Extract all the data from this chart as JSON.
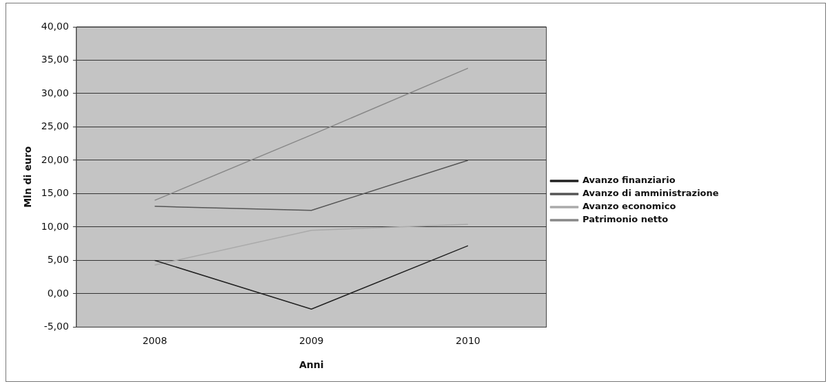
{
  "chart_data": {
    "type": "line",
    "xlabel": "Anni",
    "ylabel": "Mln di euro",
    "categories": [
      "2008",
      "2009",
      "2010"
    ],
    "series": [
      {
        "name": "Avanzo finanziario",
        "color": "#222222",
        "values": [
          5.0,
          -2.3,
          7.2
        ]
      },
      {
        "name": "Avanzo di amministrazione",
        "color": "#555555",
        "values": [
          13.1,
          12.5,
          20.0
        ]
      },
      {
        "name": "Avanzo economico",
        "color": "#aaaaaa",
        "values": [
          4.3,
          9.5,
          10.4
        ]
      },
      {
        "name": "Patrimonio netto",
        "color": "#888888",
        "values": [
          14.0,
          23.8,
          33.8
        ]
      }
    ],
    "ylim": [
      -5,
      40
    ],
    "yticks": [
      {
        "value": -5,
        "label": "-5,00"
      },
      {
        "value": 0,
        "label": "0,00"
      },
      {
        "value": 5,
        "label": "5,00"
      },
      {
        "value": 10,
        "label": "10,00"
      },
      {
        "value": 15,
        "label": "15,00"
      },
      {
        "value": 20,
        "label": "20,00"
      },
      {
        "value": 25,
        "label": "25,00"
      },
      {
        "value": 30,
        "label": "30,00"
      },
      {
        "value": 35,
        "label": "35,00"
      },
      {
        "value": 40,
        "label": "40,00"
      }
    ],
    "grid": "y",
    "legend": "right",
    "marker": "none",
    "line_style": "solid"
  }
}
